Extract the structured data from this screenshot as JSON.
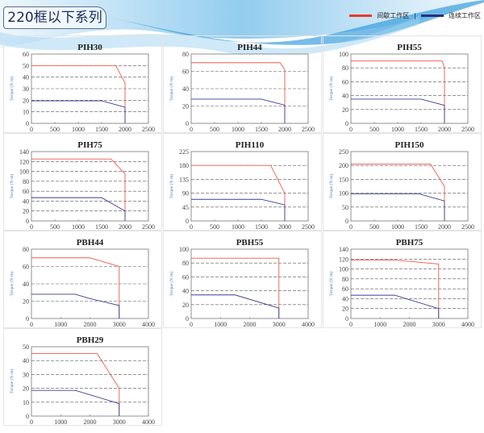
{
  "header": {
    "title": "220框以下系列",
    "legend": [
      {
        "label": "间歇工作区",
        "color": "#e8392c"
      },
      {
        "label": "连续工作区",
        "color": "#26307a"
      }
    ]
  },
  "chart_data": [
    {
      "type": "line",
      "title": "PIH30",
      "xlabel": "Motor speed (rpm)",
      "ylabel": "Torque (N·m)",
      "xlim": [
        0,
        2500
      ],
      "xticks": [
        0,
        500,
        1000,
        1500,
        2000,
        2500
      ],
      "ylim": [
        0,
        60
      ],
      "yticks": [
        0,
        10,
        20,
        30,
        40,
        50,
        60
      ],
      "grid": "dashed horizontal",
      "series": [
        {
          "name": "间歇工作区",
          "color": "#f05a4a",
          "points": [
            [
              0,
              50
            ],
            [
              1800,
              50
            ],
            [
              2000,
              35
            ],
            [
              2000,
              0
            ]
          ]
        },
        {
          "name": "连续工作区",
          "color": "#3a3f8f",
          "points": [
            [
              0,
              19.5
            ],
            [
              1500,
              19.5
            ],
            [
              2000,
              14
            ],
            [
              2000,
              0
            ]
          ]
        }
      ]
    },
    {
      "type": "line",
      "title": "PIH44",
      "xlabel": "Motor speed (rpm)",
      "ylabel": "Torque (N·m)",
      "xlim": [
        0,
        2500
      ],
      "xticks": [
        0,
        500,
        1000,
        1500,
        2000,
        2500
      ],
      "ylim": [
        0,
        80
      ],
      "yticks": [
        0,
        20,
        40,
        60,
        80
      ],
      "grid": "dashed horizontal",
      "series": [
        {
          "name": "间歇工作区",
          "color": "#f05a4a",
          "points": [
            [
              0,
              70
            ],
            [
              1900,
              70
            ],
            [
              2000,
              62
            ],
            [
              2000,
              0
            ]
          ]
        },
        {
          "name": "连续工作区",
          "color": "#3a3f8f",
          "points": [
            [
              0,
              28
            ],
            [
              1500,
              28
            ],
            [
              2000,
              21
            ],
            [
              2000,
              0
            ]
          ]
        }
      ]
    },
    {
      "type": "line",
      "title": "PIH55",
      "xlabel": "Motor speed (rpm)",
      "ylabel": "Torque (N·m)",
      "xlim": [
        0,
        2500
      ],
      "xticks": [
        0,
        500,
        1000,
        1500,
        2000,
        2500
      ],
      "ylim": [
        0,
        100
      ],
      "yticks": [
        0,
        20,
        40,
        60,
        80,
        100
      ],
      "grid": "dashed horizontal",
      "series": [
        {
          "name": "间歇工作区",
          "color": "#f05a4a",
          "points": [
            [
              0,
              90
            ],
            [
              1950,
              90
            ],
            [
              2000,
              80
            ],
            [
              2000,
              0
            ]
          ]
        },
        {
          "name": "连续工作区",
          "color": "#3a3f8f",
          "points": [
            [
              0,
              35
            ],
            [
              1500,
              35
            ],
            [
              2000,
              26
            ],
            [
              2000,
              0
            ]
          ]
        }
      ]
    },
    {
      "type": "line",
      "title": "PIH75",
      "xlabel": "Motor speed (rpm)",
      "ylabel": "Torque (N·m)",
      "xlim": [
        0,
        2500
      ],
      "xticks": [
        0,
        500,
        1000,
        1500,
        2000,
        2500
      ],
      "ylim": [
        0,
        140
      ],
      "yticks": [
        0,
        20,
        40,
        60,
        80,
        100,
        120,
        140
      ],
      "grid": "dashed horizontal",
      "series": [
        {
          "name": "间歇工作区",
          "color": "#f05a4a",
          "points": [
            [
              0,
              125
            ],
            [
              1700,
              125
            ],
            [
              2000,
              95
            ],
            [
              2000,
              0
            ]
          ]
        },
        {
          "name": "连续工作区",
          "color": "#3a3f8f",
          "points": [
            [
              0,
              47
            ],
            [
              1500,
              47
            ],
            [
              2000,
              20
            ],
            [
              2000,
              0
            ]
          ]
        }
      ]
    },
    {
      "type": "line",
      "title": "PIH110",
      "xlabel": "Motor speed (rpm)",
      "ylabel": "Torque (N·m)",
      "xlim": [
        0,
        2500
      ],
      "xticks": [
        0,
        500,
        1000,
        1500,
        2000,
        2500
      ],
      "ylim": [
        0,
        225
      ],
      "yticks": [
        0,
        45,
        90,
        135,
        180,
        225
      ],
      "grid": "dashed horizontal",
      "series": [
        {
          "name": "间歇工作区",
          "color": "#f05a4a",
          "points": [
            [
              0,
              180
            ],
            [
              1700,
              180
            ],
            [
              2000,
              90
            ],
            [
              2000,
              0
            ]
          ]
        },
        {
          "name": "连续工作区",
          "color": "#3a3f8f",
          "points": [
            [
              0,
              70
            ],
            [
              1500,
              70
            ],
            [
              2000,
              52
            ],
            [
              2000,
              0
            ]
          ]
        }
      ]
    },
    {
      "type": "line",
      "title": "PIH150",
      "xlabel": "Motor speed (rpm)",
      "ylabel": "Torque (N·m)",
      "xlim": [
        0,
        2500
      ],
      "xticks": [
        0,
        500,
        1000,
        1500,
        2000,
        2500
      ],
      "ylim": [
        0,
        250
      ],
      "yticks": [
        0,
        50,
        100,
        150,
        200,
        250
      ],
      "grid": "dashed horizontal",
      "series": [
        {
          "name": "间歇工作区",
          "color": "#f05a4a",
          "points": [
            [
              0,
              205
            ],
            [
              1700,
              205
            ],
            [
              2000,
              125
            ],
            [
              2000,
              0
            ]
          ]
        },
        {
          "name": "连续工作区",
          "color": "#3a3f8f",
          "points": [
            [
              0,
              98
            ],
            [
              1450,
              98
            ],
            [
              2000,
              72
            ],
            [
              2000,
              0
            ]
          ]
        }
      ]
    },
    {
      "type": "line",
      "title": "PBH44",
      "xlabel": "Motor speed (rpm)",
      "ylabel": "Torque (N·m)",
      "xlim": [
        0,
        4000
      ],
      "xticks": [
        0,
        1000,
        2000,
        3000,
        4000
      ],
      "ylim": [
        0,
        80
      ],
      "yticks": [
        0,
        20,
        40,
        60,
        80
      ],
      "grid": "dashed horizontal",
      "series": [
        {
          "name": "间歇工作区",
          "color": "#f05a4a",
          "points": [
            [
              0,
              70
            ],
            [
              2000,
              70
            ],
            [
              3000,
              60
            ],
            [
              3000,
              0
            ]
          ]
        },
        {
          "name": "连续工作区",
          "color": "#3a3f8f",
          "points": [
            [
              0,
              28
            ],
            [
              1500,
              28
            ],
            [
              2000,
              23
            ],
            [
              3000,
              15
            ],
            [
              3000,
              0
            ]
          ]
        }
      ]
    },
    {
      "type": "line",
      "title": "PBH55",
      "xlabel": "Motor speed (rpm)",
      "ylabel": "Torque (N·m)",
      "xlim": [
        0,
        4000
      ],
      "xticks": [
        0,
        1000,
        2000,
        3000,
        4000
      ],
      "ylim": [
        0,
        100
      ],
      "yticks": [
        0,
        20,
        40,
        60,
        80,
        100
      ],
      "grid": "dashed horizontal",
      "series": [
        {
          "name": "间歇工作区",
          "color": "#f05a4a",
          "points": [
            [
              0,
              87
            ],
            [
              3000,
              87
            ],
            [
              3000,
              0
            ]
          ]
        },
        {
          "name": "连续工作区",
          "color": "#3a3f8f",
          "points": [
            [
              0,
              34
            ],
            [
              1500,
              34
            ],
            [
              3000,
              15
            ],
            [
              3000,
              0
            ]
          ]
        }
      ]
    },
    {
      "type": "line",
      "title": "PBH75",
      "xlabel": "Motor speed (rpm)",
      "ylabel": "Torque (N·m)",
      "xlim": [
        0,
        4000
      ],
      "xticks": [
        0,
        1000,
        2000,
        3000,
        4000
      ],
      "ylim": [
        0,
        140
      ],
      "yticks": [
        0,
        20,
        40,
        60,
        80,
        100,
        120,
        140
      ],
      "grid": "dashed horizontal",
      "series": [
        {
          "name": "间歇工作区",
          "color": "#f05a4a",
          "points": [
            [
              0,
              118
            ],
            [
              1500,
              118
            ],
            [
              3000,
              110
            ],
            [
              3000,
              0
            ]
          ]
        },
        {
          "name": "连续工作区",
          "color": "#3a3f8f",
          "points": [
            [
              0,
              47
            ],
            [
              1500,
              47
            ],
            [
              3000,
              20
            ],
            [
              3000,
              0
            ]
          ]
        }
      ]
    },
    {
      "type": "line",
      "title": "PBH29",
      "xlabel": "Motor speed (rpm)",
      "ylabel": "Torque (N·m)",
      "xlim": [
        0,
        4000
      ],
      "xticks": [
        0,
        1000,
        2000,
        3000,
        4000
      ],
      "ylim": [
        0,
        50
      ],
      "yticks": [
        0,
        10,
        20,
        30,
        40,
        50
      ],
      "grid": "dashed horizontal",
      "series": [
        {
          "name": "间歇工作区",
          "color": "#f05a4a",
          "points": [
            [
              0,
              45
            ],
            [
              2250,
              45
            ],
            [
              3000,
              20
            ],
            [
              3000,
              0
            ]
          ]
        },
        {
          "name": "连续工作区",
          "color": "#3a3f8f",
          "points": [
            [
              0,
              18.5
            ],
            [
              1500,
              18.5
            ],
            [
              3000,
              9
            ],
            [
              3000,
              0
            ]
          ]
        }
      ]
    }
  ]
}
